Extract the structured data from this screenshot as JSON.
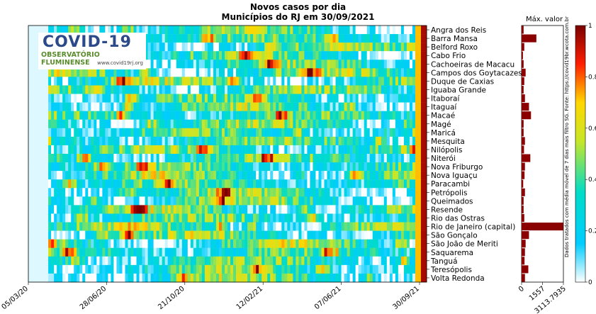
{
  "chart_data": {
    "type": "heatmap",
    "title": "Novos casos por dia",
    "subtitle": "Municípios do RJ em 30/09/2021",
    "x_tick_labels": [
      "05/03/20",
      "28/06/20",
      "21/10/20",
      "12/02/21",
      "07/06/21",
      "30/09/21"
    ],
    "categories": [
      "Angra dos Reis",
      "Barra Mansa",
      "Belford Roxo",
      "Cabo Frio",
      "Cachoeiras de Macacu",
      "Campos dos Goytacazes",
      "Duque de Caxias",
      "Iguaba Grande",
      "Itaboraí",
      "Itaguaí",
      "Macaé",
      "Magé",
      "Maricá",
      "Mesquita",
      "Nilópolis",
      "Niterói",
      "Nova Friburgo",
      "Nova Iguaçu",
      "Paracambi",
      "Petrópolis",
      "Queimados",
      "Resende",
      "Rio das Ostras",
      "Rio de Janeiro (capital)",
      "São Gonçalo",
      "São João de Meriti",
      "Saquarema",
      "Tanguá",
      "Teresópolis",
      "Volta Redonda"
    ],
    "max_bar": {
      "label": "Máx. valor",
      "tick_labels": [
        "0",
        "1557",
        "3113.7935"
      ],
      "xlim": [
        0,
        3113.7935
      ],
      "values": [
        150,
        1100,
        200,
        100,
        150,
        300,
        200,
        150,
        250,
        550,
        700,
        150,
        150,
        250,
        180,
        650,
        250,
        220,
        120,
        250,
        150,
        150,
        200,
        3100,
        550,
        300,
        250,
        220,
        500,
        250
      ]
    },
    "colorbar": {
      "ticks": [
        "1",
        "0.8",
        "0.6",
        "0.4",
        "0.2",
        "0"
      ],
      "range": [
        0,
        1
      ],
      "colors": [
        "#ffffff",
        "#00ccff",
        "#ffd700",
        "#ff0000",
        "#7a0000"
      ]
    },
    "note": "Dados tratados com média móvel de 7 dias mais filtro SG. Fonte: https://covid19br.wcota.com.br"
  },
  "logo": {
    "main": "COVID-19",
    "sub": "OBSERVATÓRIO FLUMINENSE",
    "url": "www.covid19rj.org"
  }
}
